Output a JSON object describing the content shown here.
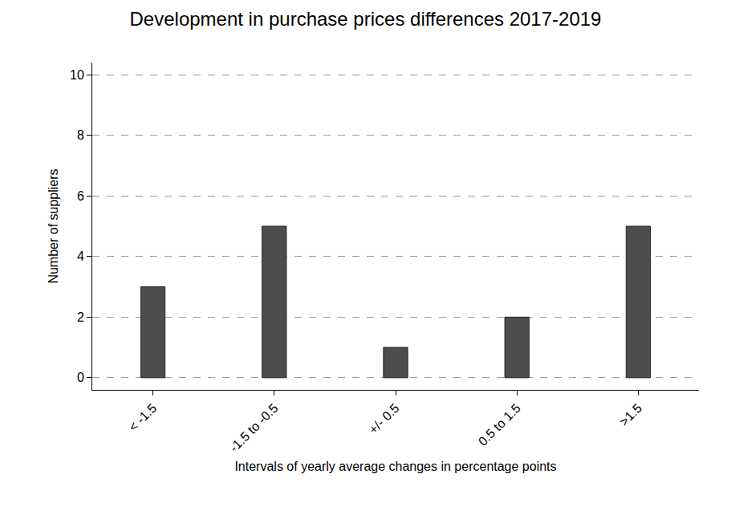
{
  "chart_data": {
    "type": "bar",
    "title": "Development in purchase prices differences 2017-2019",
    "x_label": "Intervals of yearly average changes in percentage points",
    "y_label": "Number of suppliers",
    "categories": [
      "< -1.5",
      "-1.5 to -0.5",
      "+/- 0.5",
      "0.5 to 1.5",
      ">1.5"
    ],
    "values": [
      3,
      5,
      1,
      2,
      5
    ],
    "color": "#4d4d4d",
    "ylim": [
      -0.4,
      10.4
    ],
    "yticks": [
      0,
      2,
      4,
      6,
      8,
      10
    ],
    "grid": true
  }
}
